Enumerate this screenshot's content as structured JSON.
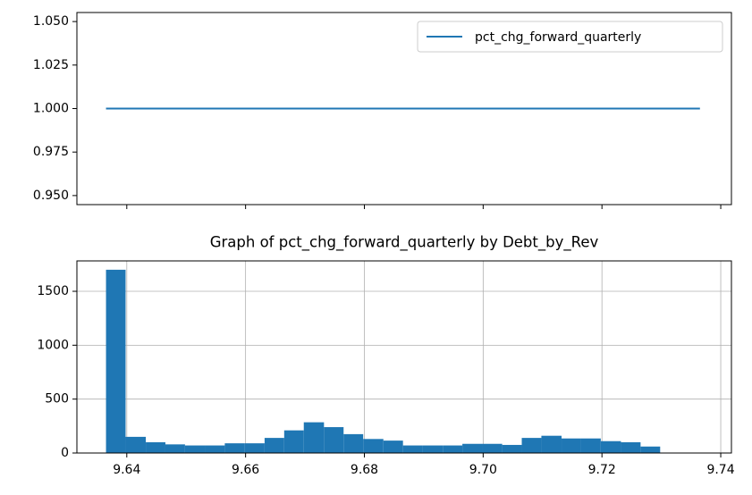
{
  "chart_data": [
    {
      "type": "line",
      "x": [
        9.6365,
        9.7365
      ],
      "series": [
        {
          "name": "pct_chg_forward_quarterly",
          "color": "#1f77b4",
          "values": [
            1,
            1
          ]
        }
      ],
      "xlim": [
        9.6316,
        9.7418
      ],
      "xticks": [
        9.64,
        9.66,
        9.68,
        9.7,
        9.72,
        9.74
      ],
      "ylim": [
        0.9448,
        1.0552
      ],
      "yticks": [
        {
          "value": 0.95,
          "label": "0.950"
        },
        {
          "value": 0.975,
          "label": "0.975"
        },
        {
          "value": 1,
          "label": "1.000"
        },
        {
          "value": 1.025,
          "label": "1.025"
        },
        {
          "value": 1.05,
          "label": "1.050"
        }
      ],
      "grid": false,
      "legend": "upper right"
    },
    {
      "type": "histogram",
      "title": "Graph of pct_chg_forward_quarterly by Debt_by_Rev",
      "color": "#1f77b4",
      "bins": [
        9.6365,
        9.6398,
        9.6432,
        9.6465,
        9.6498,
        9.6532,
        9.6565,
        9.6598,
        9.6632,
        9.6665,
        9.6698,
        9.6732,
        9.6765,
        9.6798,
        9.6832,
        9.6865,
        9.6898,
        9.6932,
        9.6965,
        9.6998,
        9.7032,
        9.7065,
        9.7098,
        9.7132,
        9.7165,
        9.7198,
        9.7232,
        9.7265,
        9.7298,
        9.7332,
        9.7365
      ],
      "values": [
        1700,
        150,
        100,
        80,
        70,
        70,
        90,
        90,
        140,
        210,
        285,
        240,
        175,
        130,
        115,
        70,
        70,
        70,
        85,
        85,
        75,
        140,
        160,
        135,
        135,
        110,
        100,
        60,
        0,
        0
      ],
      "xlim": [
        9.6316,
        9.7418
      ],
      "xticks": [
        9.64,
        9.66,
        9.68,
        {
          "value": 9.7,
          "label": "9.70"
        },
        9.72,
        9.74
      ],
      "ylim": [
        0,
        1782
      ],
      "yticks": [
        0,
        500,
        1000,
        1500
      ],
      "grid": true
    }
  ]
}
